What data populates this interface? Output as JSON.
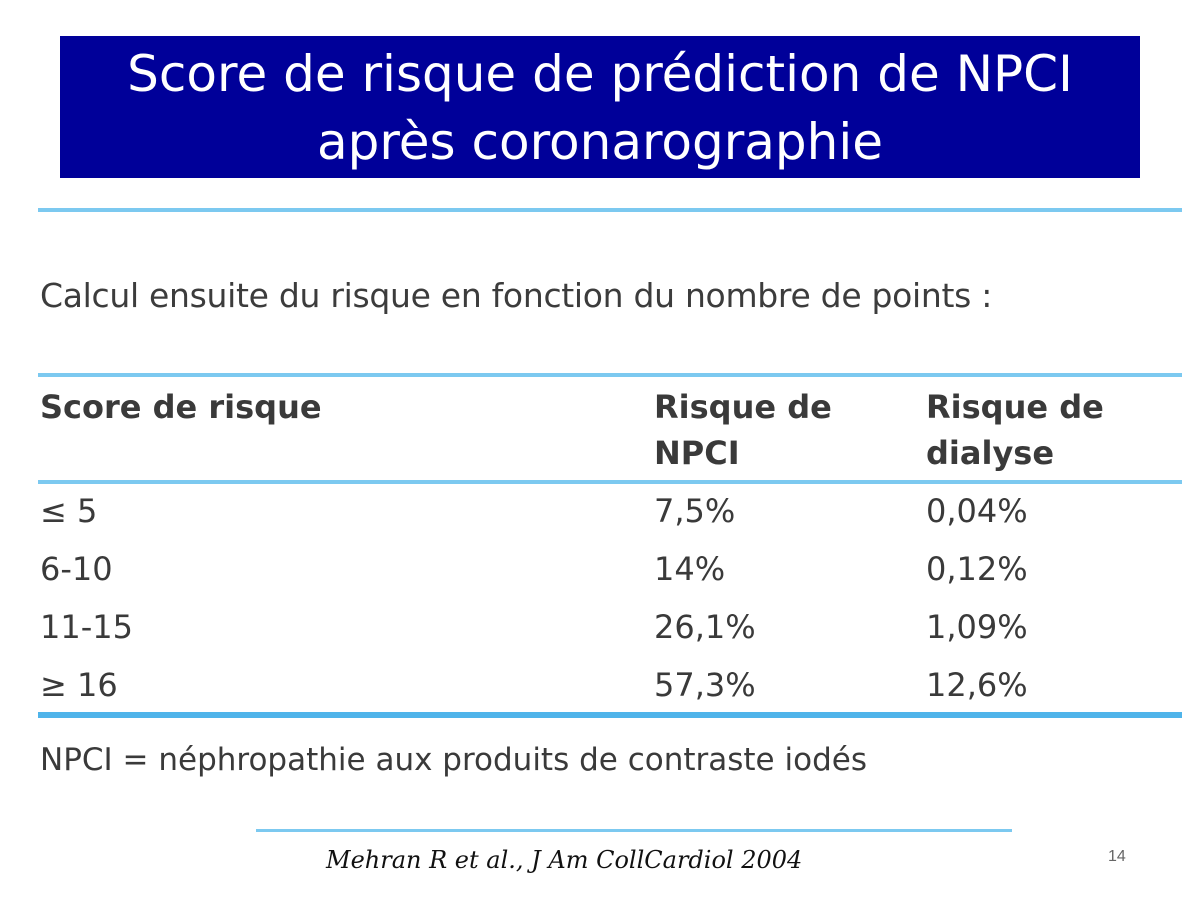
{
  "title": {
    "line1": "Score de risque de prédiction de NPCI",
    "line2": "après coronarographie"
  },
  "intro": "Calcul ensuite du risque en fonction du nombre de points :",
  "table": {
    "headers": {
      "score": "Score de risque",
      "npci_1": "Risque de",
      "npci_2": "NPCI",
      "dialyse_1": "Risque de",
      "dialyse_2": "dialyse"
    },
    "rows": [
      {
        "score": "≤ 5",
        "npci": "7,5%",
        "dialyse": "0,04%"
      },
      {
        "score": "6-10",
        "npci": "14%",
        "dialyse": "0,12%"
      },
      {
        "score": "11-15",
        "npci": "26,1%",
        "dialyse": "1,09%"
      },
      {
        "score": "≥ 16",
        "npci": "57,3%",
        "dialyse": "12,6%"
      }
    ]
  },
  "footnote": "NPCI = néphropathie aux produits de contraste iodés",
  "citation": "Mehran R et al., J Am CollCardiol 2004",
  "page_number": "14",
  "colors": {
    "title_bg": "#000099",
    "rule": "#4fb4ea"
  }
}
